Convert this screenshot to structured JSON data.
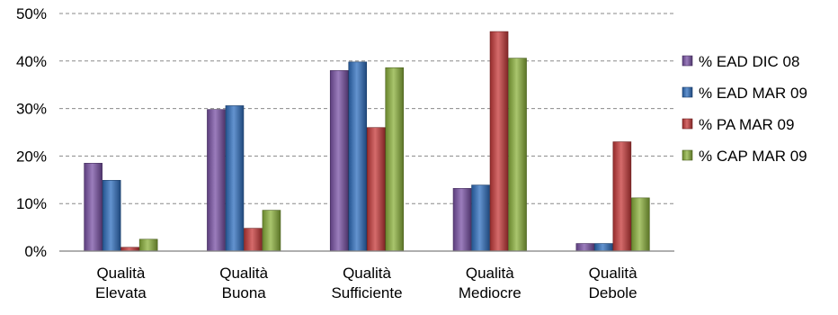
{
  "chart_data": {
    "type": "bar",
    "categories": [
      [
        "Qualità",
        "Elevata"
      ],
      [
        "Qualità",
        "Buona"
      ],
      [
        "Qualità",
        "Sufficiente"
      ],
      [
        "Qualità",
        "Mediocre"
      ],
      [
        "Qualità",
        "Debole"
      ]
    ],
    "series": [
      {
        "name": "% EAD DIC 08",
        "color": "#7a52a6",
        "values": [
          18.5,
          29.8,
          38.0,
          13.2,
          1.6
        ]
      },
      {
        "name": "% EAD MAR 09",
        "color": "#2f6fbf",
        "values": [
          14.9,
          30.6,
          39.8,
          13.9,
          1.6
        ]
      },
      {
        "name": "% PA MAR 09",
        "color": "#c73a3a",
        "values": [
          0.8,
          4.8,
          26.0,
          46.2,
          23.0
        ]
      },
      {
        "name": "% CAP MAR 09",
        "color": "#8cb23c",
        "values": [
          2.5,
          8.6,
          38.6,
          40.6,
          11.2
        ]
      }
    ],
    "ylim": [
      0,
      50
    ],
    "yticks": [
      "0%",
      "10%",
      "20%",
      "30%",
      "40%",
      "50%"
    ],
    "grid": true,
    "legend_position": "right"
  }
}
